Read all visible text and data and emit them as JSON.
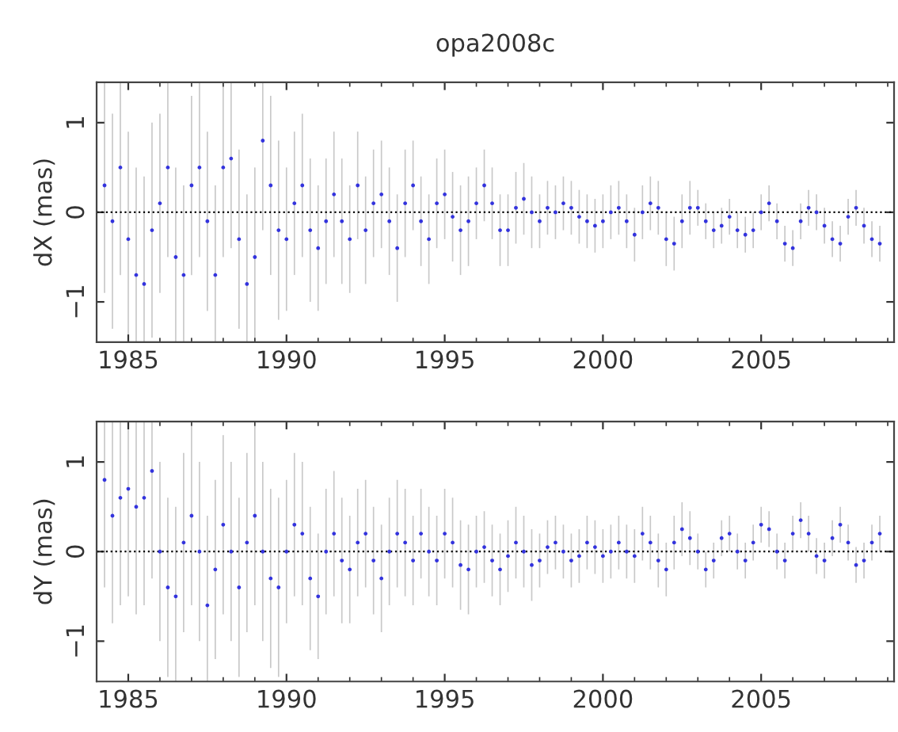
{
  "chart_data": [
    {
      "type": "scatter",
      "title": "opa2008c",
      "ylabel": "dX (mas)",
      "xlim": [
        1984,
        2009.2
      ],
      "ylim": [
        -1.45,
        1.45
      ],
      "xticks": [
        1985,
        1990,
        1995,
        2000,
        2005
      ],
      "yticks": [
        -1,
        0,
        1
      ],
      "grid": false,
      "legend": false,
      "marker": "circle",
      "ref_lines": [
        {
          "axis": "y",
          "value": 0,
          "line_style": "dotted",
          "color": "#000000"
        }
      ],
      "series": [
        {
          "color": "#3333dd",
          "x": [
            1984.25,
            1984.5,
            1984.75,
            1985.0,
            1985.25,
            1985.5,
            1985.75,
            1986.0,
            1986.25,
            1986.5,
            1986.75,
            1987.0,
            1987.25,
            1987.5,
            1987.75,
            1988.0,
            1988.25,
            1988.5,
            1988.75,
            1989.0,
            1989.25,
            1989.5,
            1989.75,
            1990.0,
            1990.25,
            1990.5,
            1990.75,
            1991.0,
            1991.25,
            1991.5,
            1991.75,
            1992.0,
            1992.25,
            1992.5,
            1992.75,
            1993.0,
            1993.25,
            1993.5,
            1993.75,
            1994.0,
            1994.25,
            1994.5,
            1994.75,
            1995.0,
            1995.25,
            1995.5,
            1995.75,
            1996.0,
            1996.25,
            1996.5,
            1996.75,
            1997.0,
            1997.25,
            1997.5,
            1997.75,
            1998.0,
            1998.25,
            1998.5,
            1998.75,
            1999.0,
            1999.25,
            1999.5,
            1999.75,
            2000.0,
            2000.25,
            2000.5,
            2000.75,
            2001.0,
            2001.25,
            2001.5,
            2001.75,
            2002.0,
            2002.25,
            2002.5,
            2002.75,
            2003.0,
            2003.25,
            2003.5,
            2003.75,
            2004.0,
            2004.25,
            2004.5,
            2004.75,
            2005.0,
            2005.25,
            2005.5,
            2005.75,
            2006.0,
            2006.25,
            2006.5,
            2006.75,
            2007.0,
            2007.25,
            2007.5,
            2007.75,
            2008.0,
            2008.25,
            2008.5,
            2008.75
          ],
          "values": [
            0.3,
            -0.1,
            0.5,
            -0.3,
            -0.7,
            -0.8,
            -0.2,
            0.1,
            0.5,
            -0.5,
            -0.7,
            0.3,
            0.5,
            -0.1,
            -0.7,
            0.5,
            0.6,
            -0.3,
            -0.8,
            -0.5,
            0.8,
            0.3,
            -0.2,
            -0.3,
            0.1,
            0.3,
            -0.2,
            -0.4,
            -0.1,
            0.2,
            -0.1,
            -0.3,
            0.3,
            -0.2,
            0.1,
            0.2,
            -0.1,
            -0.4,
            0.1,
            0.3,
            -0.1,
            -0.3,
            0.1,
            0.2,
            -0.05,
            -0.2,
            -0.1,
            0.1,
            0.3,
            0.1,
            -0.2,
            -0.2,
            0.05,
            0.15,
            0.0,
            -0.1,
            0.05,
            0.0,
            0.1,
            0.05,
            -0.05,
            -0.1,
            -0.15,
            -0.1,
            0.0,
            0.05,
            -0.1,
            -0.25,
            0.0,
            0.1,
            0.05,
            -0.3,
            -0.35,
            -0.1,
            0.05,
            0.05,
            -0.1,
            -0.2,
            -0.15,
            -0.05,
            -0.2,
            -0.25,
            -0.2,
            0.0,
            0.1,
            -0.1,
            -0.35,
            -0.4,
            -0.1,
            0.05,
            0.0,
            -0.15,
            -0.3,
            -0.35,
            -0.05,
            0.05,
            -0.15,
            -0.3,
            -0.35
          ],
          "errors": [
            1.2,
            1.2,
            1.2,
            1.2,
            1.2,
            1.2,
            1.2,
            1.0,
            1.0,
            1.0,
            1.0,
            1.0,
            1.0,
            1.0,
            1.0,
            1.0,
            1.0,
            1.0,
            1.0,
            1.0,
            1.0,
            1.0,
            1.0,
            0.8,
            0.8,
            0.8,
            0.8,
            0.7,
            0.7,
            0.7,
            0.7,
            0.6,
            0.6,
            0.6,
            0.6,
            0.6,
            0.6,
            0.6,
            0.6,
            0.5,
            0.5,
            0.5,
            0.5,
            0.5,
            0.5,
            0.5,
            0.5,
            0.4,
            0.4,
            0.4,
            0.4,
            0.4,
            0.4,
            0.4,
            0.4,
            0.3,
            0.3,
            0.3,
            0.3,
            0.3,
            0.3,
            0.3,
            0.3,
            0.3,
            0.3,
            0.3,
            0.3,
            0.3,
            0.3,
            0.3,
            0.3,
            0.3,
            0.3,
            0.3,
            0.3,
            0.2,
            0.2,
            0.2,
            0.2,
            0.2,
            0.2,
            0.2,
            0.2,
            0.2,
            0.2,
            0.2,
            0.2,
            0.2,
            0.2,
            0.2,
            0.2,
            0.2,
            0.2,
            0.2,
            0.2,
            0.2,
            0.2,
            0.2,
            0.2
          ]
        }
      ]
    },
    {
      "type": "scatter",
      "ylabel": "dY (mas)",
      "xlim": [
        1984,
        2009.2
      ],
      "ylim": [
        -1.45,
        1.45
      ],
      "xticks": [
        1985,
        1990,
        1995,
        2000,
        2005
      ],
      "yticks": [
        -1,
        0,
        1
      ],
      "grid": false,
      "legend": false,
      "marker": "circle",
      "ref_lines": [
        {
          "axis": "y",
          "value": 0,
          "line_style": "dotted",
          "color": "#000000"
        }
      ],
      "series": [
        {
          "color": "#3333dd",
          "x": [
            1984.25,
            1984.5,
            1984.75,
            1985.0,
            1985.25,
            1985.5,
            1985.75,
            1986.0,
            1986.25,
            1986.5,
            1986.75,
            1987.0,
            1987.25,
            1987.5,
            1987.75,
            1988.0,
            1988.25,
            1988.5,
            1988.75,
            1989.0,
            1989.25,
            1989.5,
            1989.75,
            1990.0,
            1990.25,
            1990.5,
            1990.75,
            1991.0,
            1991.25,
            1991.5,
            1991.75,
            1992.0,
            1992.25,
            1992.5,
            1992.75,
            1993.0,
            1993.25,
            1993.5,
            1993.75,
            1994.0,
            1994.25,
            1994.5,
            1994.75,
            1995.0,
            1995.25,
            1995.5,
            1995.75,
            1996.0,
            1996.25,
            1996.5,
            1996.75,
            1997.0,
            1997.25,
            1997.5,
            1997.75,
            1998.0,
            1998.25,
            1998.5,
            1998.75,
            1999.0,
            1999.25,
            1999.5,
            1999.75,
            2000.0,
            2000.25,
            2000.5,
            2000.75,
            2001.0,
            2001.25,
            2001.5,
            2001.75,
            2002.0,
            2002.25,
            2002.5,
            2002.75,
            2003.0,
            2003.25,
            2003.5,
            2003.75,
            2004.0,
            2004.25,
            2004.5,
            2004.75,
            2005.0,
            2005.25,
            2005.5,
            2005.75,
            2006.0,
            2006.25,
            2006.5,
            2006.75,
            2007.0,
            2007.25,
            2007.5,
            2007.75,
            2008.0,
            2008.25,
            2008.5,
            2008.75
          ],
          "values": [
            0.8,
            0.4,
            0.6,
            0.7,
            0.5,
            0.6,
            0.9,
            0.0,
            -0.4,
            -0.5,
            0.1,
            0.4,
            0.0,
            -0.6,
            -0.2,
            0.3,
            0.0,
            -0.4,
            0.1,
            0.4,
            0.0,
            -0.3,
            -0.4,
            0.0,
            0.3,
            0.2,
            -0.3,
            -0.5,
            0.0,
            0.2,
            -0.1,
            -0.2,
            0.1,
            0.2,
            -0.1,
            -0.3,
            0.0,
            0.2,
            0.1,
            -0.1,
            0.2,
            0.0,
            -0.1,
            0.2,
            0.1,
            -0.15,
            -0.2,
            0.0,
            0.05,
            -0.1,
            -0.2,
            -0.05,
            0.1,
            0.0,
            -0.15,
            -0.1,
            0.05,
            0.1,
            0.0,
            -0.1,
            -0.05,
            0.1,
            0.05,
            -0.05,
            0.0,
            0.1,
            0.0,
            -0.05,
            0.2,
            0.1,
            -0.1,
            -0.2,
            0.1,
            0.25,
            0.15,
            0.0,
            -0.2,
            -0.1,
            0.15,
            0.2,
            0.0,
            -0.1,
            0.1,
            0.3,
            0.25,
            0.0,
            -0.1,
            0.2,
            0.35,
            0.2,
            -0.05,
            -0.1,
            0.15,
            0.3,
            0.1,
            -0.15,
            -0.1,
            0.1,
            0.2
          ],
          "errors": [
            1.2,
            1.2,
            1.2,
            1.2,
            1.2,
            1.2,
            1.2,
            1.0,
            1.0,
            1.0,
            1.0,
            1.0,
            1.0,
            1.0,
            1.0,
            1.0,
            1.0,
            1.0,
            1.0,
            1.0,
            1.0,
            1.0,
            1.0,
            0.8,
            0.8,
            0.8,
            0.8,
            0.7,
            0.7,
            0.7,
            0.7,
            0.6,
            0.6,
            0.6,
            0.6,
            0.6,
            0.6,
            0.6,
            0.6,
            0.5,
            0.5,
            0.5,
            0.5,
            0.5,
            0.5,
            0.5,
            0.5,
            0.4,
            0.4,
            0.4,
            0.4,
            0.4,
            0.4,
            0.4,
            0.4,
            0.3,
            0.3,
            0.3,
            0.3,
            0.3,
            0.3,
            0.3,
            0.3,
            0.3,
            0.3,
            0.3,
            0.3,
            0.3,
            0.3,
            0.3,
            0.3,
            0.3,
            0.3,
            0.3,
            0.3,
            0.2,
            0.2,
            0.2,
            0.2,
            0.2,
            0.2,
            0.2,
            0.2,
            0.2,
            0.2,
            0.2,
            0.2,
            0.2,
            0.2,
            0.2,
            0.2,
            0.2,
            0.2,
            0.2,
            0.2,
            0.2,
            0.2,
            0.2,
            0.2
          ]
        }
      ]
    }
  ]
}
